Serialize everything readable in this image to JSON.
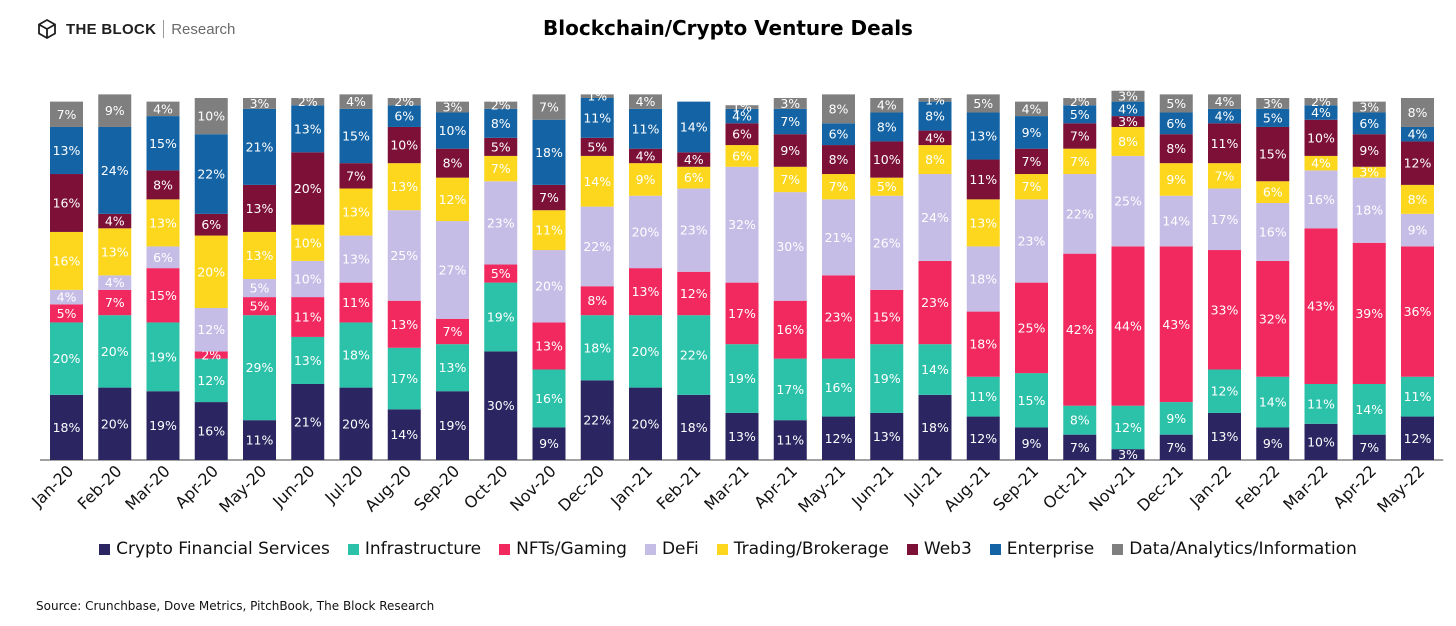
{
  "header": {
    "brand_name": "THE BLOCK",
    "brand_sub": "Research",
    "title": "Blockchain/Crypto Venture Deals"
  },
  "source": "Source: Crunchbase, Dove Metrics, PitchBook, The Block Research",
  "chart_data": {
    "type": "bar",
    "stacked": true,
    "title": "Blockchain/Crypto Venture Deals",
    "ylim": [
      0,
      100
    ],
    "unit": "%",
    "legend_position": "bottom",
    "categories": [
      "Jan-20",
      "Feb-20",
      "Mar-20",
      "Apr-20",
      "May-20",
      "Jun-20",
      "Jul-20",
      "Aug-20",
      "Sep-20",
      "Oct-20",
      "Nov-20",
      "Dec-20",
      "Jan-21",
      "Feb-21",
      "Mar-21",
      "Apr-21",
      "May-21",
      "Jun-21",
      "Jul-21",
      "Aug-21",
      "Sep-21",
      "Oct-21",
      "Nov-21",
      "Dec-21",
      "Jan-22",
      "Feb-22",
      "Mar-22",
      "Apr-22",
      "May-22"
    ],
    "series": [
      {
        "name": "Crypto Financial Services",
        "color": "#2b2561",
        "label_color": "#ffffff",
        "values": [
          18,
          20,
          19,
          16,
          11,
          21,
          20,
          14,
          19,
          30,
          9,
          22,
          20,
          18,
          13,
          11,
          12,
          13,
          18,
          12,
          9,
          7,
          3,
          7,
          13,
          9,
          10,
          7,
          12
        ]
      },
      {
        "name": "Infrastructure",
        "color": "#2cc2a9",
        "label_color": "#ffffff",
        "values": [
          20,
          20,
          19,
          12,
          29,
          13,
          18,
          17,
          13,
          19,
          16,
          18,
          20,
          22,
          19,
          17,
          16,
          19,
          14,
          11,
          15,
          8,
          12,
          9,
          12,
          14,
          11,
          14,
          11
        ]
      },
      {
        "name": "NFTs/Gaming",
        "color": "#f2295f",
        "label_color": "#ffffff",
        "values": [
          5,
          7,
          15,
          2,
          5,
          11,
          11,
          13,
          7,
          5,
          13,
          8,
          13,
          12,
          17,
          16,
          23,
          15,
          23,
          18,
          25,
          42,
          44,
          43,
          33,
          32,
          43,
          39,
          36
        ]
      },
      {
        "name": "DeFi",
        "color": "#c5bde6",
        "label_color": "#ffffff",
        "values": [
          4,
          4,
          6,
          12,
          5,
          10,
          13,
          25,
          27,
          23,
          20,
          22,
          20,
          23,
          32,
          30,
          21,
          26,
          24,
          18,
          23,
          22,
          25,
          14,
          17,
          16,
          16,
          18,
          9
        ]
      },
      {
        "name": "Trading/Brokerage",
        "color": "#fdd71d",
        "label_color": "#ffffff",
        "values": [
          16,
          13,
          13,
          20,
          13,
          10,
          13,
          13,
          12,
          7,
          11,
          14,
          9,
          6,
          6,
          7,
          7,
          5,
          8,
          13,
          7,
          7,
          8,
          9,
          7,
          6,
          4,
          3,
          8
        ]
      },
      {
        "name": "Web3",
        "color": "#7c1036",
        "label_color": "#ffffff",
        "values": [
          16,
          4,
          8,
          6,
          13,
          20,
          7,
          10,
          8,
          5,
          7,
          5,
          4,
          4,
          6,
          9,
          8,
          10,
          4,
          11,
          7,
          7,
          3,
          8,
          11,
          15,
          10,
          9,
          12
        ]
      },
      {
        "name": "Enterprise",
        "color": "#1464a5",
        "label_color": "#ffffff",
        "values": [
          13,
          24,
          15,
          22,
          21,
          13,
          15,
          6,
          10,
          8,
          18,
          11,
          11,
          14,
          4,
          7,
          6,
          8,
          8,
          13,
          9,
          5,
          4,
          6,
          4,
          5,
          4,
          6,
          4
        ]
      },
      {
        "name": "Data/Analytics/Information",
        "color": "#7f7f7f",
        "label_color": "#ffffff",
        "values": [
          7,
          9,
          4,
          10,
          3,
          2,
          4,
          2,
          3,
          2,
          7,
          1,
          4,
          0,
          1,
          3,
          8,
          4,
          1,
          5,
          4,
          2,
          3,
          5,
          4,
          3,
          2,
          3,
          8
        ]
      }
    ]
  }
}
